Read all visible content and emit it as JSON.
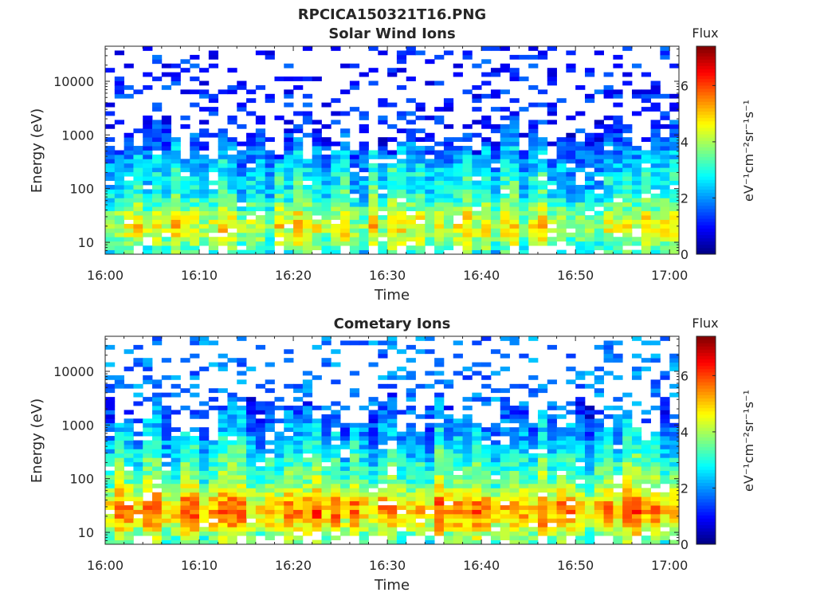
{
  "figure_title": "RPCICA150321T16.PNG",
  "chart_data": [
    {
      "type": "heatmap",
      "title": "Solar Wind Ions",
      "xlabel": "Time",
      "ylabel": "Energy (eV)",
      "x_tick_labels": [
        "16:00",
        "16:10",
        "16:20",
        "16:30",
        "16:40",
        "16:50",
        "17:00"
      ],
      "x_range_minutes": [
        0,
        61
      ],
      "y_scale": "log",
      "y_range": [
        6,
        45000
      ],
      "y_ticks": [
        10,
        100,
        1000,
        10000
      ],
      "y_tick_labels": [
        "10",
        "100",
        "1000",
        "10000"
      ],
      "colorbar": {
        "label": "Flux",
        "unit_label": "eV⁻¹cm⁻²sr⁻¹s⁻¹",
        "range": [
          0,
          7.4
        ],
        "ticks": [
          0,
          2,
          4,
          6
        ],
        "tick_labels": [
          "0",
          "2",
          "4",
          "6"
        ],
        "colormap": "jet"
      },
      "profile": {
        "low_energy_peak_eV": 20,
        "low_energy_flux": 4.4,
        "mid_energy_flux": 2.7,
        "high_energy_flux": 0.6,
        "sparse_above_eV": 600
      }
    },
    {
      "type": "heatmap",
      "title": "Cometary Ions",
      "xlabel": "Time",
      "ylabel": "Energy (eV)",
      "x_tick_labels": [
        "16:00",
        "16:10",
        "16:20",
        "16:30",
        "16:40",
        "16:50",
        "17:00"
      ],
      "x_range_minutes": [
        0,
        61
      ],
      "y_scale": "log",
      "y_range": [
        6,
        45000
      ],
      "y_ticks": [
        10,
        100,
        1000,
        10000
      ],
      "y_tick_labels": [
        "10",
        "100",
        "1000",
        "10000"
      ],
      "colorbar": {
        "label": "Flux",
        "unit_label": "eV⁻¹cm⁻²sr⁻¹s⁻¹",
        "range": [
          0,
          7.4
        ],
        "ticks": [
          0,
          2,
          4,
          6
        ],
        "tick_labels": [
          "0",
          "2",
          "4",
          "6"
        ],
        "colormap": "jet"
      },
      "profile": {
        "low_energy_peak_eV": 25,
        "low_energy_flux": 5.3,
        "mid_energy_flux": 3.2,
        "high_energy_flux": 1.2,
        "sparse_above_eV": 1000
      }
    }
  ]
}
